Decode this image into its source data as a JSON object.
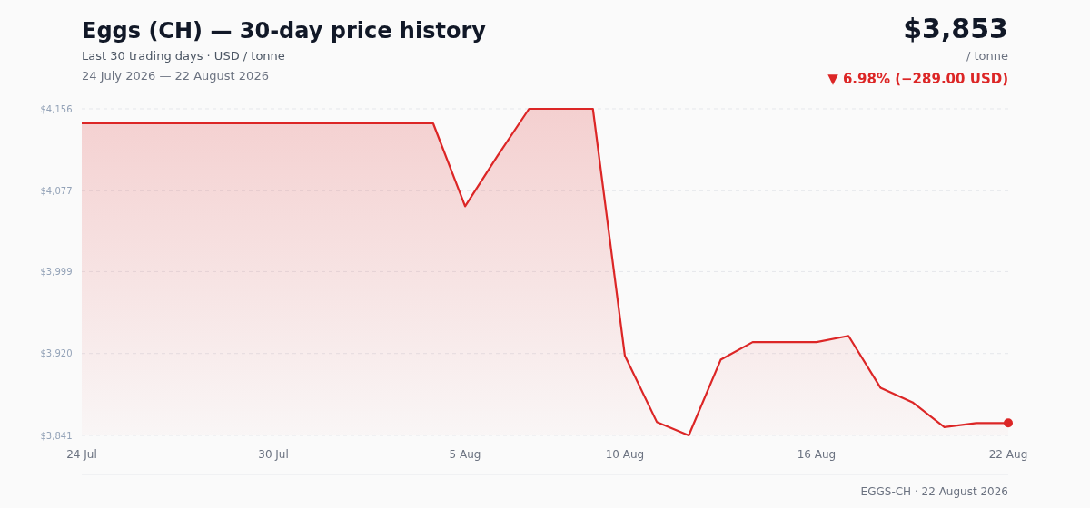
{
  "chart_data": {
    "type": "area",
    "title": "Eggs (CH) — 30-day price history",
    "subtitle": "Last 30 trading days · USD / tonne",
    "annotations": [
      "24 July 2026 — 22 August 2026",
      "$3,853",
      "/ tonne",
      "▼ 6.98% (−289.00 USD)",
      "EGGS-CH · 22 August 2026"
    ],
    "x": [
      "2026-07-24",
      "2026-07-25",
      "2026-07-26",
      "2026-07-27",
      "2026-07-28",
      "2026-07-29",
      "2026-07-30",
      "2026-07-31",
      "2026-08-01",
      "2026-08-02",
      "2026-08-03",
      "2026-08-04",
      "2026-08-05",
      "2026-08-06",
      "2026-08-07",
      "2026-08-08",
      "2026-08-09",
      "2026-08-10",
      "2026-08-11",
      "2026-08-12",
      "2026-08-13",
      "2026-08-14",
      "2026-08-15",
      "2026-08-16",
      "2026-08-17",
      "2026-08-18",
      "2026-08-19",
      "2026-08-20",
      "2026-08-21",
      "2026-08-22"
    ],
    "series": [
      {
        "color": "#dc2626",
        "values": [
          4142,
          4142,
          4142,
          4142,
          4142,
          4142,
          4142,
          4142,
          4142,
          4142,
          4142,
          4142,
          4062,
          4110,
          4156,
          4156,
          4156,
          3918,
          3854,
          3841,
          3914,
          3931,
          3931,
          3931,
          3937,
          3887,
          3873,
          3849,
          3853,
          3853
        ]
      }
    ],
    "xlim": [
      "2026-07-24",
      "2026-08-22"
    ],
    "xticks": [
      {
        "value": "2026-07-24",
        "label": "24 Jul"
      },
      {
        "value": "2026-07-30",
        "label": "30 Jul"
      },
      {
        "value": "2026-08-05",
        "label": "5 Aug"
      },
      {
        "value": "2026-08-10",
        "label": "10 Aug"
      },
      {
        "value": "2026-08-16",
        "label": "16 Aug"
      },
      {
        "value": "2026-08-22",
        "label": "22 Aug"
      }
    ],
    "ylim": [
      3841,
      4156
    ],
    "yticks": [
      {
        "value": 3841,
        "label": "$3,841"
      },
      {
        "value": 3920,
        "label": "$3,920"
      },
      {
        "value": 3999,
        "label": "$3,999"
      },
      {
        "value": 4077,
        "label": "$4,077"
      },
      {
        "value": 4156,
        "label": "$4,156"
      }
    ],
    "grid": "y",
    "line_style": "solid"
  }
}
